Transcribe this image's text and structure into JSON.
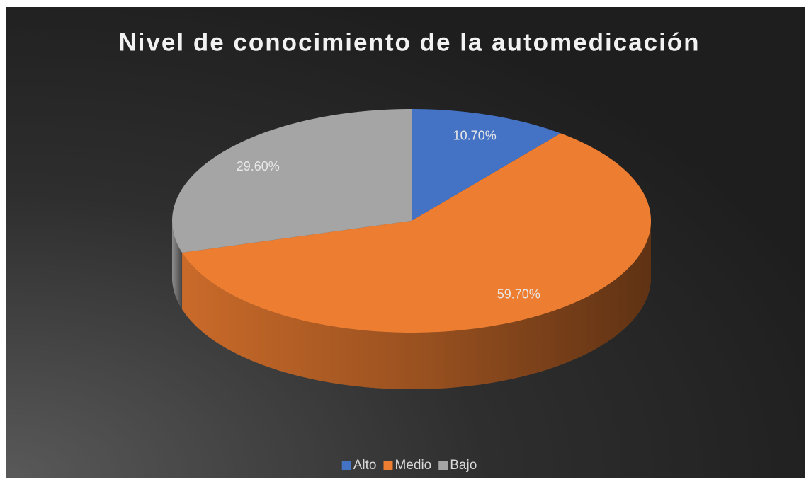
{
  "chart_data": {
    "type": "pie",
    "title": "Nivel de conocimiento de la automedicación",
    "categories": [
      "Alto",
      "Medio",
      "Bajo"
    ],
    "values": [
      10.7,
      59.7,
      29.6
    ],
    "value_labels": [
      "10.70%",
      "59.70%",
      "29.60%"
    ],
    "colors": [
      "#4472c4",
      "#ed7d31",
      "#a5a5a5"
    ],
    "legend": "bottom"
  }
}
